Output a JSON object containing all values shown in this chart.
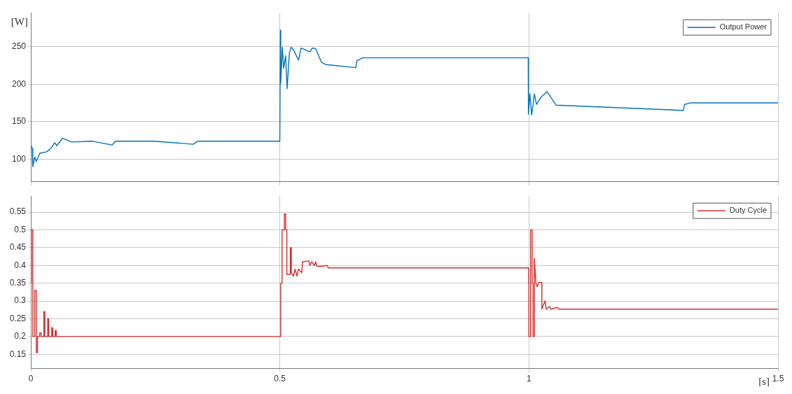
{
  "chart_data": [
    {
      "type": "line",
      "ylabel": "[W]",
      "xlim": [
        0,
        1.5
      ],
      "xticks": [
        0,
        0.5,
        1,
        1.5
      ],
      "ylim": [
        70,
        295
      ],
      "yticks": [
        100,
        150,
        200,
        250
      ],
      "tick_labels": "y",
      "grid": true,
      "legend": "top right",
      "line_style": "solid",
      "series": [
        {
          "name": "Output Power",
          "color": "#0072bd",
          "x": [
            0,
            0.003,
            0.004,
            0.008,
            0.011,
            0.018,
            0.032,
            0.041,
            0.048,
            0.052,
            0.064,
            0.082,
            0.124,
            0.163,
            0.17,
            0.248,
            0.326,
            0.335,
            0.4999,
            0.501,
            0.5017,
            0.505,
            0.5076,
            0.5114,
            0.5145,
            0.519,
            0.5224,
            0.527,
            0.5375,
            0.5425,
            0.5605,
            0.565,
            0.572,
            0.5835,
            0.5927,
            0.6524,
            0.6547,
            0.666,
            0.9986,
            0.999,
            1.0018,
            1.0055,
            1.011,
            1.0151,
            1.0248,
            1.0363,
            1.0547,
            1.31,
            1.3125,
            1.3237,
            1.5
          ],
          "values": [
            119,
            114,
            90,
            103,
            97,
            108,
            110,
            115,
            122,
            118,
            128,
            123,
            124,
            119,
            124,
            124,
            120,
            124,
            124,
            272,
            201,
            249,
            221,
            238,
            194,
            241,
            249,
            246,
            232,
            248,
            243,
            248,
            247,
            229,
            226,
            222,
            231,
            235,
            235,
            160,
            187,
            159,
            187,
            173,
            183,
            190,
            172,
            165,
            173,
            175,
            175
          ]
        }
      ]
    },
    {
      "type": "line",
      "xlabel": "[s]",
      "xlim": [
        0,
        1.5
      ],
      "xticks": [
        0,
        0.5,
        1,
        1.5
      ],
      "ylim": [
        0.11,
        0.595
      ],
      "yticks": [
        0.15,
        0.2,
        0.25,
        0.3,
        0.35,
        0.4,
        0.45,
        0.5,
        0.55
      ],
      "grid": true,
      "legend": "top right",
      "line_style": "solid",
      "series": [
        {
          "name": "Duty Cycle",
          "color": "#d03030",
          "x": [
            0,
            0.001,
            0.001,
            0.004,
            0.004,
            0.0078,
            0.0078,
            0.011,
            0.011,
            0.0134,
            0.0134,
            0.018,
            0.018,
            0.021,
            0.021,
            0.0262,
            0.0262,
            0.028,
            0.028,
            0.034,
            0.034,
            0.036,
            0.036,
            0.042,
            0.042,
            0.044,
            0.044,
            0.049,
            0.049,
            0.051,
            0.051,
            0.5017,
            0.5017,
            0.5044,
            0.5044,
            0.509,
            0.509,
            0.5117,
            0.5117,
            0.514,
            0.514,
            0.521,
            0.521,
            0.523,
            0.523,
            0.5275,
            0.53,
            0.5345,
            0.537,
            0.544,
            0.5455,
            0.558,
            0.56,
            0.564,
            0.5695,
            0.572,
            0.574,
            0.58,
            0.595,
            0.597,
            0.9995,
            0.9995,
            0.9999,
            0.9999,
            1.0033,
            1.0033,
            1.0065,
            1.0065,
            1.0083,
            1.0083,
            1.011,
            1.011,
            1.014,
            1.0167,
            1.02,
            1.0258,
            1.026,
            1.0322,
            1.035,
            1.0413,
            1.0437,
            1.0575,
            1.06,
            1.5
          ],
          "values": [
            0.35,
            0.35,
            0.5,
            0.5,
            0.2,
            0.2,
            0.33,
            0.33,
            0.155,
            0.155,
            0.2,
            0.2,
            0.21,
            0.21,
            0.2,
            0.2,
            0.27,
            0.27,
            0.2,
            0.2,
            0.25,
            0.25,
            0.2,
            0.2,
            0.225,
            0.225,
            0.2,
            0.2,
            0.217,
            0.217,
            0.2,
            0.2,
            0.35,
            0.35,
            0.5,
            0.5,
            0.545,
            0.545,
            0.5,
            0.5,
            0.375,
            0.375,
            0.45,
            0.45,
            0.38,
            0.37,
            0.39,
            0.37,
            0.39,
            0.38,
            0.41,
            0.413,
            0.4,
            0.41,
            0.4,
            0.41,
            0.398,
            0.397,
            0.4,
            0.393,
            0.393,
            0.35,
            0.35,
            0.2,
            0.2,
            0.5,
            0.5,
            0.35,
            0.35,
            0.2,
            0.2,
            0.42,
            0.35,
            0.34,
            0.352,
            0.352,
            0.277,
            0.3,
            0.277,
            0.285,
            0.277,
            0.282,
            0.277,
            0.277
          ]
        }
      ]
    }
  ]
}
